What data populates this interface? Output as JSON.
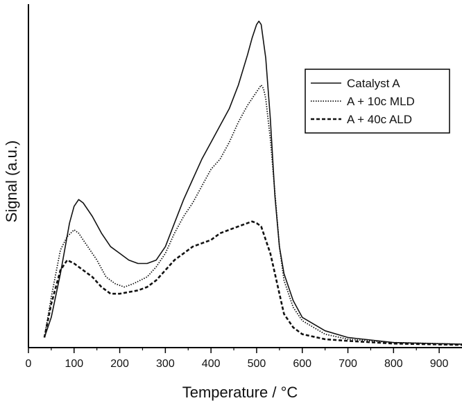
{
  "chart_data": {
    "type": "line",
    "title": "",
    "xlabel": "Temperature / °C",
    "ylabel": "Signal (a.u.)",
    "xlim": [
      0,
      950
    ],
    "ylim": [
      0,
      1
    ],
    "x_ticks": [
      0,
      100,
      200,
      300,
      400,
      500,
      600,
      700,
      800,
      900
    ],
    "y_ticks_shown": false,
    "grid": false,
    "legend_position": "top-right",
    "series": [
      {
        "name": "Catalyst A",
        "style": "solid",
        "x": [
          35,
          50,
          70,
          90,
          100,
          110,
          120,
          140,
          160,
          180,
          200,
          220,
          240,
          260,
          280,
          300,
          320,
          340,
          360,
          380,
          400,
          420,
          440,
          460,
          480,
          490,
          500,
          505,
          510,
          520,
          530,
          540,
          550,
          560,
          580,
          600,
          650,
          700,
          800,
          950
        ],
        "y": [
          0.03,
          0.09,
          0.22,
          0.37,
          0.42,
          0.44,
          0.43,
          0.39,
          0.34,
          0.3,
          0.28,
          0.26,
          0.25,
          0.25,
          0.26,
          0.3,
          0.37,
          0.44,
          0.5,
          0.56,
          0.61,
          0.66,
          0.71,
          0.78,
          0.87,
          0.92,
          0.96,
          0.97,
          0.96,
          0.86,
          0.68,
          0.45,
          0.3,
          0.22,
          0.14,
          0.09,
          0.05,
          0.03,
          0.015,
          0.01
        ]
      },
      {
        "name": "A + 10c MLD",
        "style": "dotted",
        "x": [
          35,
          50,
          70,
          85,
          100,
          110,
          130,
          150,
          170,
          190,
          210,
          230,
          260,
          280,
          300,
          320,
          340,
          360,
          380,
          400,
          420,
          440,
          460,
          480,
          490,
          500,
          505,
          510,
          515,
          520,
          530,
          540,
          550,
          560,
          580,
          600,
          650,
          700,
          800,
          950
        ],
        "y": [
          0.03,
          0.15,
          0.29,
          0.33,
          0.35,
          0.34,
          0.3,
          0.26,
          0.21,
          0.19,
          0.18,
          0.19,
          0.21,
          0.24,
          0.28,
          0.34,
          0.39,
          0.43,
          0.48,
          0.53,
          0.56,
          0.61,
          0.67,
          0.72,
          0.74,
          0.76,
          0.77,
          0.78,
          0.77,
          0.74,
          0.62,
          0.46,
          0.3,
          0.2,
          0.12,
          0.08,
          0.04,
          0.025,
          0.015,
          0.01
        ]
      },
      {
        "name": "A + 40c ALD",
        "style": "dashed",
        "x": [
          35,
          50,
          70,
          85,
          100,
          120,
          140,
          160,
          180,
          200,
          220,
          240,
          260,
          280,
          300,
          320,
          340,
          360,
          380,
          400,
          420,
          440,
          460,
          480,
          490,
          500,
          510,
          520,
          530,
          540,
          550,
          560,
          580,
          600,
          650,
          700,
          800,
          950
        ],
        "y": [
          0.03,
          0.13,
          0.23,
          0.26,
          0.25,
          0.23,
          0.21,
          0.18,
          0.16,
          0.16,
          0.165,
          0.17,
          0.18,
          0.2,
          0.23,
          0.26,
          0.28,
          0.3,
          0.31,
          0.32,
          0.34,
          0.35,
          0.36,
          0.37,
          0.375,
          0.37,
          0.36,
          0.32,
          0.28,
          0.22,
          0.16,
          0.1,
          0.06,
          0.04,
          0.025,
          0.02,
          0.012,
          0.008
        ]
      }
    ]
  }
}
